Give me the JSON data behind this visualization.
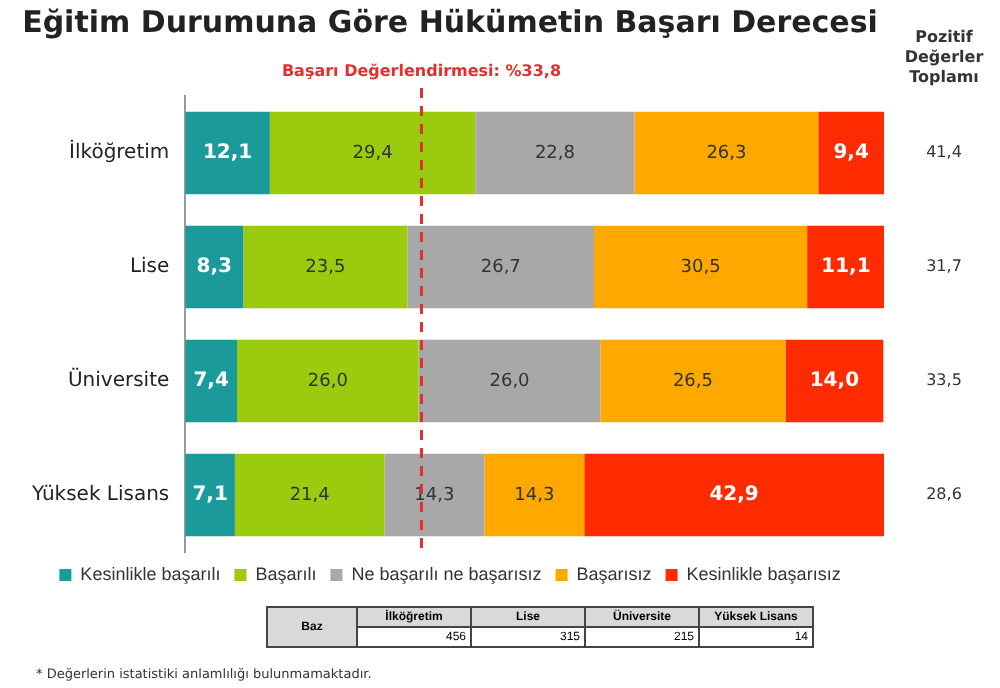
{
  "chart_data": {
    "type": "bar",
    "orientation": "horizontal",
    "stacked": true,
    "title": "Eğitim Durumuna Göre Hükümetin Başarı Derecesi",
    "categories": [
      "İlköğretim",
      "Lise",
      "Üniversite",
      "Yüksek Lisans"
    ],
    "series": [
      {
        "name": "Kesinlikle başarılı",
        "color": "#1b9a9c",
        "values": [
          12.1,
          8.3,
          7.4,
          7.1
        ],
        "value_labels": [
          "12,1",
          "8,3",
          "7,4",
          "7,1"
        ]
      },
      {
        "name": "Başarılı",
        "color": "#9bcb0e",
        "values": [
          29.4,
          23.5,
          26.0,
          21.4
        ],
        "value_labels": [
          "29,4",
          "23,5",
          "26,0",
          "21,4"
        ]
      },
      {
        "name": "Ne başarılı ne başarısız",
        "color": "#a8a8a8",
        "values": [
          22.8,
          26.7,
          26.0,
          14.3
        ],
        "value_labels": [
          "22,8",
          "26,7",
          "26,0",
          "14,3"
        ]
      },
      {
        "name": "Başarısız",
        "color": "#fea800",
        "values": [
          26.3,
          30.5,
          26.5,
          14.3
        ],
        "value_labels": [
          "26,3",
          "30,5",
          "26,5",
          "14,3"
        ]
      },
      {
        "name": "Kesinlikle başarısız",
        "color": "#fe2a00",
        "values": [
          9.4,
          11.1,
          14.0,
          42.9
        ],
        "value_labels": [
          "9,4",
          "11,1",
          "14,0",
          "42,9"
        ]
      }
    ],
    "xlim": [
      0,
      100
    ],
    "tick_labels": "y",
    "legend": "bottom",
    "ref_lines": [
      {
        "axis": "x",
        "value": 33.8,
        "label": "Başarı Değerlendirmesi: %33,8",
        "color": "#e03030",
        "line_style": "dashed"
      }
    ],
    "annotations": [
      "Pozitif Değerler Toplamı",
      "41,4",
      "31,7",
      "33,5",
      "28,6",
      "Baz",
      "İlköğretim",
      "Lise",
      "Üniversite",
      "Yüksek Lisans",
      "456",
      "315",
      "215",
      "14",
      "* Değerlerin istatistiki anlamlılığı bulunmamaktadır."
    ]
  }
}
